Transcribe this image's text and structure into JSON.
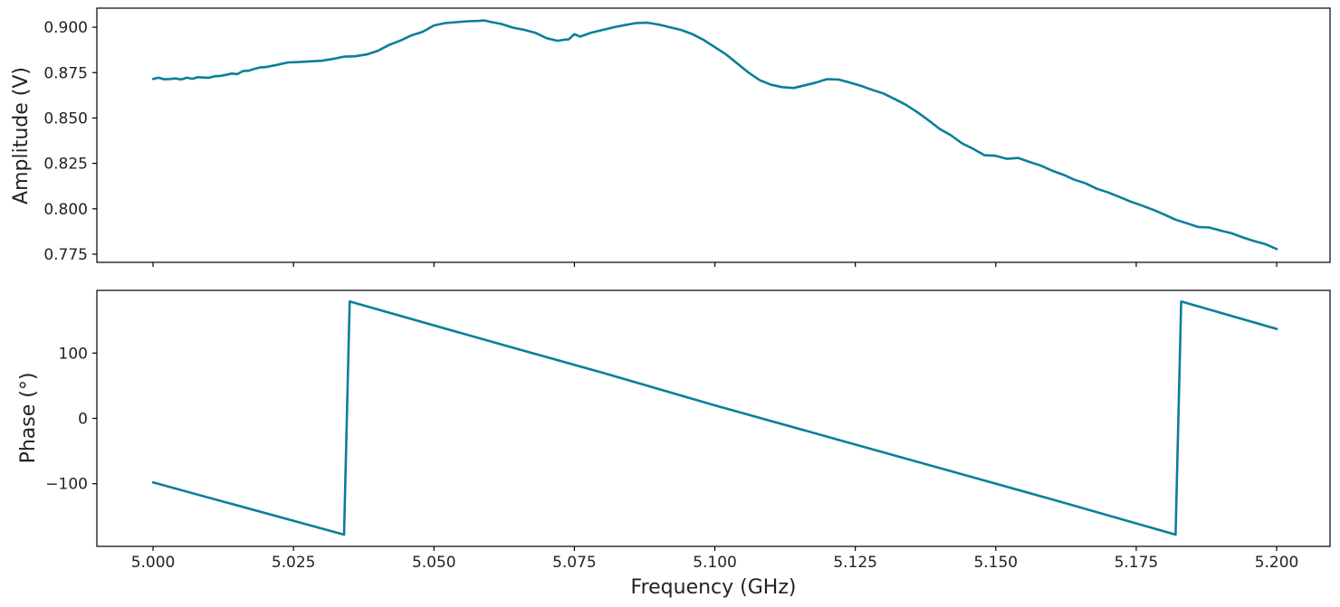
{
  "chart_data": [
    {
      "type": "line",
      "panel": "top",
      "xlabel": "",
      "ylabel": "Amplitude (V)",
      "xlim": [
        4.99,
        5.2095
      ],
      "ylim": [
        0.7705,
        0.9105
      ],
      "xticks": [
        5.0,
        5.025,
        5.05,
        5.075,
        5.1,
        5.125,
        5.15,
        5.175,
        5.2
      ],
      "yticks": [
        0.775,
        0.8,
        0.825,
        0.85,
        0.875,
        0.9
      ],
      "ytick_labels": [
        "0.775",
        "0.800",
        "0.825",
        "0.850",
        "0.875",
        "0.900"
      ],
      "show_xtick_labels": false,
      "grid": false,
      "series": [
        {
          "color": "#0a7f98",
          "x": [
            5.0,
            5.001,
            5.002,
            5.003,
            5.004,
            5.005,
            5.006,
            5.007,
            5.008,
            5.009,
            5.01,
            5.011,
            5.012,
            5.013,
            5.014,
            5.015,
            5.016,
            5.017,
            5.018,
            5.019,
            5.02,
            5.022,
            5.024,
            5.026,
            5.028,
            5.03,
            5.032,
            5.034,
            5.036,
            5.038,
            5.04,
            5.042,
            5.044,
            5.046,
            5.048,
            5.05,
            5.052,
            5.054,
            5.056,
            5.058,
            5.059,
            5.06,
            5.062,
            5.064,
            5.066,
            5.068,
            5.07,
            5.072,
            5.073,
            5.074,
            5.075,
            5.076,
            5.078,
            5.08,
            5.082,
            5.084,
            5.086,
            5.088,
            5.09,
            5.092,
            5.094,
            5.096,
            5.098,
            5.1,
            5.102,
            5.104,
            5.106,
            5.108,
            5.11,
            5.112,
            5.114,
            5.116,
            5.118,
            5.119,
            5.12,
            5.122,
            5.124,
            5.126,
            5.128,
            5.13,
            5.132,
            5.134,
            5.136,
            5.138,
            5.14,
            5.142,
            5.144,
            5.146,
            5.148,
            5.15,
            5.152,
            5.154,
            5.156,
            5.158,
            5.16,
            5.162,
            5.164,
            5.166,
            5.168,
            5.17,
            5.172,
            5.174,
            5.176,
            5.178,
            5.18,
            5.182,
            5.184,
            5.186,
            5.188,
            5.19,
            5.192,
            5.194,
            5.196,
            5.198,
            5.2
          ],
          "y": [
            0.8715,
            0.8722,
            0.8713,
            0.8715,
            0.8718,
            0.8712,
            0.8722,
            0.8716,
            0.8725,
            0.8723,
            0.8722,
            0.873,
            0.8732,
            0.8738,
            0.8745,
            0.8742,
            0.8758,
            0.876,
            0.877,
            0.8778,
            0.878,
            0.8792,
            0.8806,
            0.8808,
            0.8812,
            0.8815,
            0.8825,
            0.8838,
            0.884,
            0.885,
            0.887,
            0.8902,
            0.8926,
            0.8955,
            0.8975,
            0.901,
            0.9023,
            0.9028,
            0.9033,
            0.9035,
            0.9037,
            0.903,
            0.9018,
            0.8998,
            0.8986,
            0.897,
            0.894,
            0.8925,
            0.893,
            0.8933,
            0.8962,
            0.8948,
            0.897,
            0.8985,
            0.9,
            0.9012,
            0.9023,
            0.9025,
            0.9015,
            0.9,
            0.8985,
            0.8962,
            0.893,
            0.889,
            0.885,
            0.88,
            0.875,
            0.8708,
            0.8683,
            0.867,
            0.8665,
            0.868,
            0.8695,
            0.8705,
            0.8714,
            0.8712,
            0.8695,
            0.8677,
            0.8655,
            0.8635,
            0.8605,
            0.8573,
            0.8533,
            0.8488,
            0.844,
            0.8405,
            0.836,
            0.833,
            0.8295,
            0.8292,
            0.8275,
            0.828,
            0.8258,
            0.8238,
            0.821,
            0.8188,
            0.816,
            0.814,
            0.811,
            0.809,
            0.8065,
            0.804,
            0.8018,
            0.7995,
            0.7968,
            0.794,
            0.792,
            0.79,
            0.7897,
            0.788,
            0.7865,
            0.7842,
            0.7822,
            0.7805,
            0.7778
          ]
        }
      ]
    },
    {
      "type": "line",
      "panel": "bottom",
      "xlabel": "Frequency (GHz)",
      "ylabel": "Phase (°)",
      "xlim": [
        4.99,
        5.2095
      ],
      "ylim": [
        -196,
        196
      ],
      "xticks": [
        5.0,
        5.025,
        5.05,
        5.075,
        5.1,
        5.125,
        5.15,
        5.175,
        5.2
      ],
      "xtick_labels": [
        "5.000",
        "5.025",
        "5.050",
        "5.075",
        "5.100",
        "5.125",
        "5.150",
        "5.175",
        "5.200"
      ],
      "yticks": [
        -100,
        0,
        100
      ],
      "ytick_labels": [
        "−100",
        "0",
        "100"
      ],
      "grid": false,
      "series": [
        {
          "color": "#0a7f98",
          "x": [
            5.0,
            5.034,
            5.035,
            5.06,
            5.08,
            5.1,
            5.12,
            5.14,
            5.16,
            5.182,
            5.183,
            5.2
          ],
          "y": [
            -98,
            -178,
            179,
            118,
            70,
            20,
            -28,
            -76,
            -124,
            -178,
            179,
            137
          ]
        }
      ]
    }
  ]
}
